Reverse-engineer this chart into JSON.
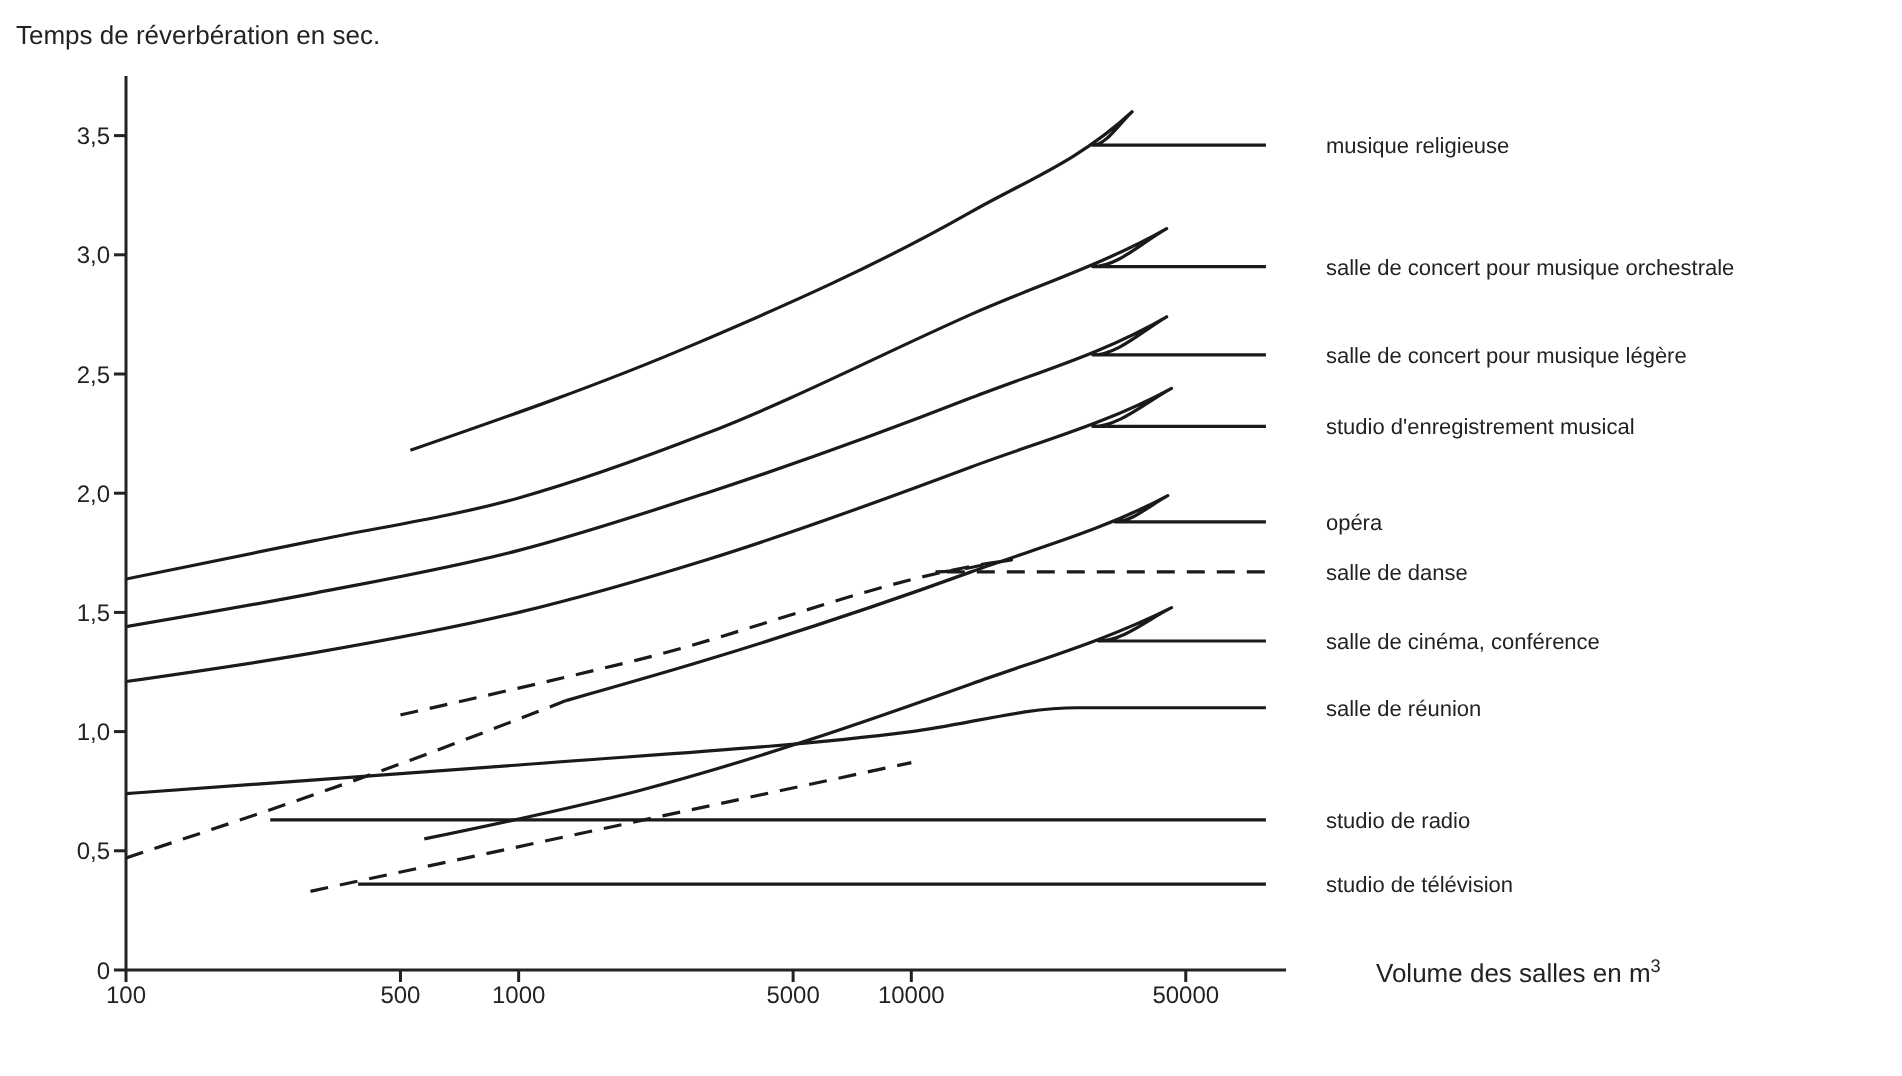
{
  "chart_data": {
    "type": "line",
    "xlabel": "Volume des salles en m$^{3}$",
    "ylabel": "Temps de réverbération en sec.",
    "log": "x",
    "xlim": [
      100,
      90000
    ],
    "xticks": [
      100,
      500,
      1000,
      5000,
      10000,
      50000
    ],
    "ylim": [
      0,
      3.75
    ],
    "yticks": [
      0,
      {
        "value": 0.5,
        "label": "0,5"
      },
      {
        "value": 1,
        "label": "1,0"
      },
      {
        "value": 1.5,
        "label": "1,5"
      },
      {
        "value": 2,
        "label": "2,0"
      },
      {
        "value": 2.5,
        "label": "2,5"
      },
      {
        "value": 3,
        "label": "3,0"
      },
      {
        "value": 3.5,
        "label": "3,5"
      }
    ],
    "marker": "none",
    "series": [
      {
        "name": "musique religieuse",
        "color": "#1a1a1a",
        "x": [
          530,
          2760,
          14200,
          36500,
          29000,
          80000
        ],
        "values": [
          2.18,
          2.62,
          3.18,
          3.6,
          3.46,
          3.46
        ]
      },
      {
        "name": "salle de concert pour musique orchestrale",
        "color": "#1a1a1a",
        "x": [
          100,
          300,
          1000,
          3000,
          14200,
          44700,
          29000,
          80000
        ],
        "values": [
          1.64,
          1.8,
          1.98,
          2.25,
          2.75,
          3.11,
          2.95,
          2.95
        ]
      },
      {
        "name": "salle de concert pour musique légère",
        "color": "#1a1a1a",
        "x": [
          100,
          300,
          1000,
          3000,
          14200,
          44700,
          29000,
          80000
        ],
        "values": [
          1.44,
          1.58,
          1.76,
          2.0,
          2.4,
          2.74,
          2.58,
          2.58
        ]
      },
      {
        "name": "studio d'enregistrement musical",
        "color": "#1a1a1a",
        "x": [
          100,
          300,
          1000,
          3000,
          14200,
          46000,
          29000,
          80000
        ],
        "values": [
          1.21,
          1.33,
          1.5,
          1.72,
          2.11,
          2.44,
          2.28,
          2.28
        ]
      },
      {
        "name": "opéra",
        "color": "#1a1a1a",
        "x": [
          1320,
          3000,
          14200,
          45000,
          33000,
          80000
        ],
        "values": [
          1.13,
          1.3,
          1.67,
          1.99,
          1.88,
          1.88
        ]
      },
      {
        "name": "salle de danse",
        "color": "#1a1a1a",
        "line_style": "dashed",
        "x": [
          500,
          2000,
          18000,
          11500,
          80000
        ],
        "values": [
          1.07,
          1.3,
          1.72,
          1.67,
          1.67
        ]
      },
      {
        "name": "salle de cinéma, conférence",
        "color": "#1a1a1a",
        "x": [
          575,
          2000,
          14200,
          46000,
          30000,
          80000
        ],
        "values": [
          0.55,
          0.75,
          1.2,
          1.52,
          1.38,
          1.38
        ]
      },
      {
        "name": "salle de réunion",
        "color": "#1a1a1a",
        "x": [
          100,
          1000,
          10000,
          26500,
          80000
        ],
        "values": [
          0.74,
          0.86,
          1.0,
          1.1,
          1.1
        ]
      },
      {
        "name": "studio de radio",
        "color": "#1a1a1a",
        "x": [
          233,
          80000
        ],
        "values": [
          0.63,
          0.63
        ]
      },
      {
        "name": "studio de télévision",
        "color": "#1a1a1a",
        "x": [
          390,
          80000
        ],
        "values": [
          0.36,
          0.36
        ]
      },
      {
        "color": "#1a1a1a",
        "line_style": "dashed",
        "x": [
          100,
          510,
          1320
        ],
        "values": [
          0.47,
          0.87,
          1.13
        ]
      },
      {
        "color": "#1a1a1a",
        "line_style": "dashed",
        "x": [
          295,
          10000
        ],
        "values": [
          0.33,
          0.87
        ]
      }
    ]
  }
}
